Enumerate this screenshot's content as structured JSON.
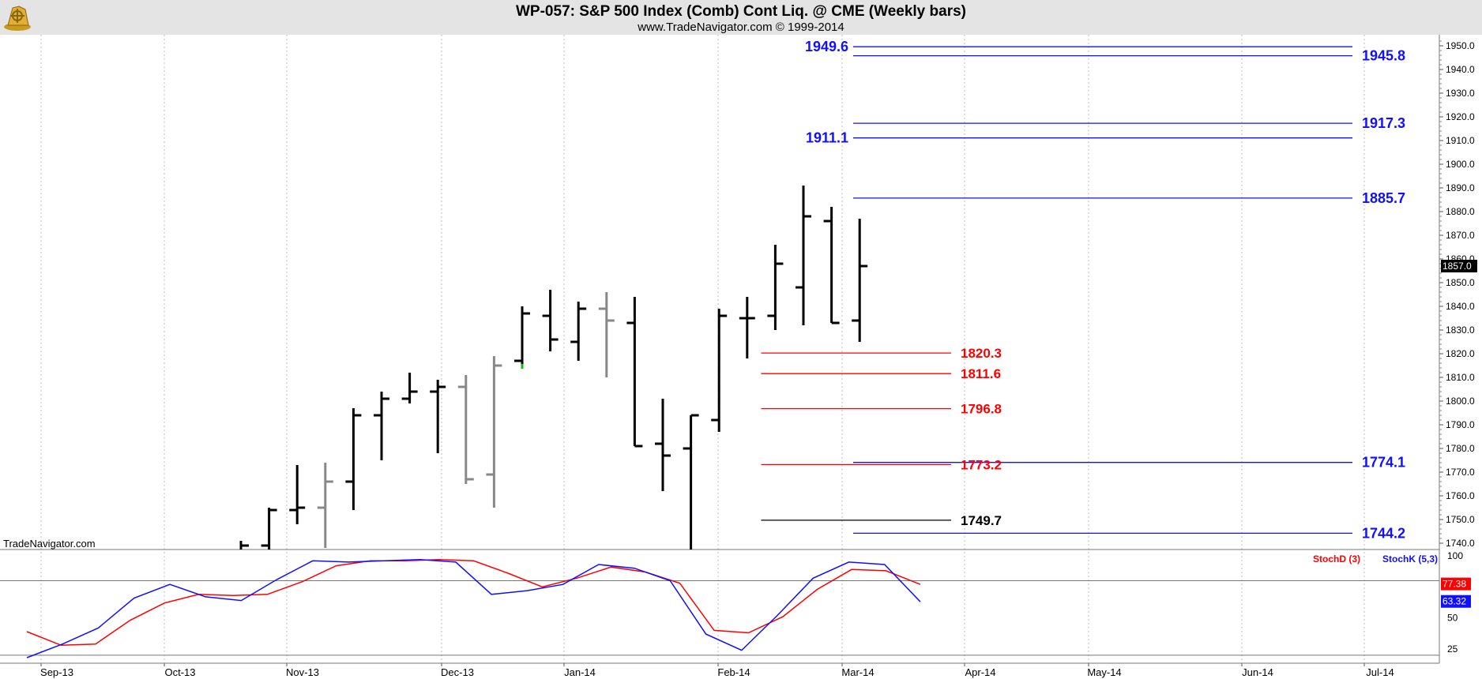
{
  "header": {
    "title": "WP-057:  S&P 500 Index (Comb) Cont Liq. @ CME  (Weekly bars)",
    "subtitle": "www.TradeNavigator.com © 1999-2014",
    "watermark": "TradeNavigator.com",
    "logo": "ship-wheel-logo-icon"
  },
  "colors": {
    "bar_black": "#000000",
    "bar_gray": "#888888",
    "bar_green_tick": "#00c800",
    "blue_level": "#1010ff",
    "red_level": "#ff0000",
    "stoch_d": "#ff0000",
    "stoch_k": "#1010ff",
    "grid": "#bdbdbd"
  },
  "chart_data": [
    {
      "type": "bar",
      "name": "price-pane",
      "ylim": [
        1735,
        1955
      ],
      "y_ticks": [
        "1740.0",
        "1750.0",
        "1760.0",
        "1770.0",
        "1780.0",
        "1790.0",
        "1800.0",
        "1810.0",
        "1820.0",
        "1830.0",
        "1840.0",
        "1850.0",
        "1860.0",
        "1870.0",
        "1880.0",
        "1890.0",
        "1900.0",
        "1910.0",
        "1920.0",
        "1930.0",
        "1940.0",
        "1950.0"
      ],
      "x_labels": [
        "Sep-13",
        "Oct-13",
        "Nov-13",
        "Dec-13",
        "Jan-14",
        "Feb-14",
        "Mar-14",
        "Apr-14",
        "May-14",
        "Jun-14",
        "Jul-14"
      ],
      "last_price": "1857.0",
      "bars": [
        {
          "date": "2013-10-21",
          "open": 1731,
          "high": 1741,
          "low": 1730,
          "close": 1739,
          "color": "black"
        },
        {
          "date": "2013-10-28",
          "open": 1739,
          "high": 1755,
          "low": 1728,
          "close": 1754,
          "color": "black"
        },
        {
          "date": "2013-11-04",
          "open": 1754,
          "high": 1773,
          "low": 1748,
          "close": 1755,
          "color": "black"
        },
        {
          "date": "2013-11-11",
          "open": 1755,
          "high": 1774,
          "low": 1738,
          "close": 1766,
          "color": "gray"
        },
        {
          "date": "2013-11-18",
          "open": 1766,
          "high": 1797,
          "low": 1754,
          "close": 1794,
          "color": "black"
        },
        {
          "date": "2013-11-25",
          "open": 1794,
          "high": 1804,
          "low": 1775,
          "close": 1801,
          "color": "black"
        },
        {
          "date": "2013-12-02",
          "open": 1801,
          "high": 1812,
          "low": 1799,
          "close": 1804,
          "color": "black"
        },
        {
          "date": "2013-12-09",
          "open": 1804,
          "high": 1809,
          "low": 1778,
          "close": 1806,
          "color": "black"
        },
        {
          "date": "2013-12-16",
          "open": 1806,
          "high": 1811,
          "low": 1765,
          "close": 1767,
          "color": "gray"
        },
        {
          "date": "2013-12-23",
          "open": 1769,
          "high": 1819,
          "low": 1755,
          "close": 1815,
          "color": "gray"
        },
        {
          "date": "2013-12-30",
          "open": 1817,
          "high": 1840,
          "low": 1815,
          "close": 1837,
          "color": "black"
        },
        {
          "date": "2014-01-06",
          "open": 1836,
          "high": 1847,
          "low": 1821,
          "close": 1826,
          "color": "black"
        },
        {
          "date": "2014-01-13",
          "open": 1825,
          "high": 1842,
          "low": 1817,
          "close": 1839,
          "color": "black"
        },
        {
          "date": "2014-01-20",
          "open": 1839,
          "high": 1846,
          "low": 1810,
          "close": 1834,
          "color": "gray"
        },
        {
          "date": "2014-01-27",
          "open": 1833,
          "high": 1844,
          "low": 1781,
          "close": 1781,
          "color": "black"
        },
        {
          "date": "2014-02-03",
          "open": 1782,
          "high": 1801,
          "low": 1762,
          "close": 1777,
          "color": "black"
        },
        {
          "date": "2014-02-10",
          "open": 1780,
          "high": 1794,
          "low": 1710,
          "close": 1794,
          "color": "black"
        },
        {
          "date": "2014-02-17",
          "open": 1792,
          "high": 1839,
          "low": 1787,
          "close": 1836,
          "color": "black"
        },
        {
          "date": "2014-02-24",
          "open": 1835,
          "high": 1844,
          "low": 1818,
          "close": 1835,
          "color": "black"
        },
        {
          "date": "2014-03-03",
          "open": 1836,
          "high": 1866,
          "low": 1830,
          "close": 1858,
          "color": "black"
        },
        {
          "date": "2014-03-10",
          "open": 1848,
          "high": 1891,
          "low": 1832,
          "close": 1878,
          "color": "black"
        },
        {
          "date": "2014-03-17",
          "open": 1876,
          "high": 1882,
          "low": 1833,
          "close": 1833,
          "color": "black"
        },
        {
          "date": "2014-03-24",
          "open": 1834,
          "high": 1877,
          "low": 1825,
          "close": 1857,
          "color": "black"
        }
      ],
      "levels": [
        {
          "value": 1949.6,
          "label": "1949.6",
          "color": "blue",
          "label_side": "left",
          "from": "2014-03-03",
          "to": "2014-06-30"
        },
        {
          "value": 1945.8,
          "label": "1945.8",
          "color": "blue",
          "label_side": "right",
          "from": "2014-03-03",
          "to": "2014-06-30"
        },
        {
          "value": 1917.3,
          "label": "1917.3",
          "color": "blue",
          "label_side": "right",
          "from": "2014-03-03",
          "to": "2014-06-30"
        },
        {
          "value": 1911.1,
          "label": "1911.1",
          "color": "blue",
          "label_side": "left",
          "from": "2014-03-03",
          "to": "2014-06-30"
        },
        {
          "value": 1885.7,
          "label": "1885.7",
          "color": "blue",
          "label_side": "right",
          "from": "2014-03-03",
          "to": "2014-07-07"
        },
        {
          "value": 1820.3,
          "label": "1820.3",
          "color": "red",
          "label_side": "right",
          "from": "2014-02-10",
          "to": "2014-04-01"
        },
        {
          "value": 1811.6,
          "label": "1811.6",
          "color": "red",
          "label_side": "right",
          "from": "2014-02-10",
          "to": "2014-04-01"
        },
        {
          "value": 1796.8,
          "label": "1796.8",
          "color": "red",
          "label_side": "right",
          "from": "2014-02-10",
          "to": "2014-04-01"
        },
        {
          "value": 1774.1,
          "label": "1774.1",
          "color": "blue",
          "label_side": "right",
          "from": "2014-03-03",
          "to": "2014-07-07"
        },
        {
          "value": 1773.2,
          "label": "1773.2",
          "color": "red",
          "label_side": "right",
          "from": "2014-02-10",
          "to": "2014-04-01"
        },
        {
          "value": 1749.7,
          "label": "1749.7",
          "color": "black",
          "label_side": "right",
          "from": "2014-02-10",
          "to": "2014-04-01"
        },
        {
          "value": 1744.2,
          "label": "1744.2",
          "color": "blue",
          "label_side": "right",
          "from": "2014-03-03",
          "to": "2014-07-07"
        }
      ]
    },
    {
      "type": "line",
      "name": "stochastics-pane",
      "ylim": [
        10,
        105
      ],
      "y_ticks": [
        "100",
        "50",
        "25"
      ],
      "reference_lines": [
        80,
        20
      ],
      "legend": [
        "StochD (3)",
        "StochK (5,3)"
      ],
      "last_values": {
        "d": "77.38",
        "k": "63.32"
      },
      "series": [
        {
          "name": "StochD (3)",
          "color": "red",
          "points": [
            [
              "2013-08-26",
              39
            ],
            [
              "2013-09-09",
              28
            ],
            [
              "2013-09-23",
              29
            ],
            [
              "2013-10-07",
              48
            ],
            [
              "2013-10-21",
              62
            ],
            [
              "2013-11-04",
              69
            ],
            [
              "2013-11-18",
              68
            ],
            [
              "2013-12-02",
              69
            ],
            [
              "2013-12-16",
              79
            ],
            [
              "2013-12-30",
              92
            ],
            [
              "2014-01-13",
              96
            ],
            [
              "2014-01-27",
              96
            ],
            [
              "2014-02-10",
              97
            ],
            [
              "2014-02-24",
              96
            ],
            [
              "2014-03-10",
              86
            ],
            [
              "2014-03-24",
              75
            ],
            [
              "2014-04-07",
              82
            ],
            [
              "2014-04-21",
              91
            ],
            [
              "2014-05-05",
              87
            ],
            [
              "2014-05-19",
              78
            ],
            [
              "2014-06-02",
              40
            ],
            [
              "2014-06-09",
              38
            ],
            [
              "2014-06-23",
              51
            ],
            [
              "2014-07-07",
              73
            ],
            [
              "2014-07-21",
              89
            ],
            [
              "2014-08-04",
              88
            ],
            [
              "2014-08-18",
              77
            ]
          ]
        },
        {
          "name": "StochK (5,3)",
          "color": "blue",
          "points": [
            [
              "2013-08-26",
              18
            ],
            [
              "2013-09-09",
              29
            ],
            [
              "2013-09-23",
              42
            ],
            [
              "2013-10-07",
              66
            ],
            [
              "2013-10-21",
              77
            ],
            [
              "2013-11-04",
              67
            ],
            [
              "2013-11-18",
              64
            ],
            [
              "2013-12-02",
              81
            ],
            [
              "2013-12-16",
              96
            ],
            [
              "2013-12-30",
              95
            ],
            [
              "2014-01-13",
              96
            ],
            [
              "2014-01-27",
              97
            ],
            [
              "2014-02-10",
              95
            ],
            [
              "2014-02-24",
              69
            ],
            [
              "2014-03-10",
              72
            ],
            [
              "2014-03-24",
              77
            ],
            [
              "2014-04-07",
              93
            ],
            [
              "2014-04-21",
              90
            ],
            [
              "2014-05-05",
              80
            ],
            [
              "2014-05-19",
              37
            ],
            [
              "2014-06-02",
              24
            ],
            [
              "2014-06-09",
              52
            ],
            [
              "2014-06-23",
              82
            ],
            [
              "2014-07-07",
              95
            ],
            [
              "2014-07-21",
              93
            ],
            [
              "2014-08-04",
              63
            ]
          ]
        }
      ]
    }
  ]
}
